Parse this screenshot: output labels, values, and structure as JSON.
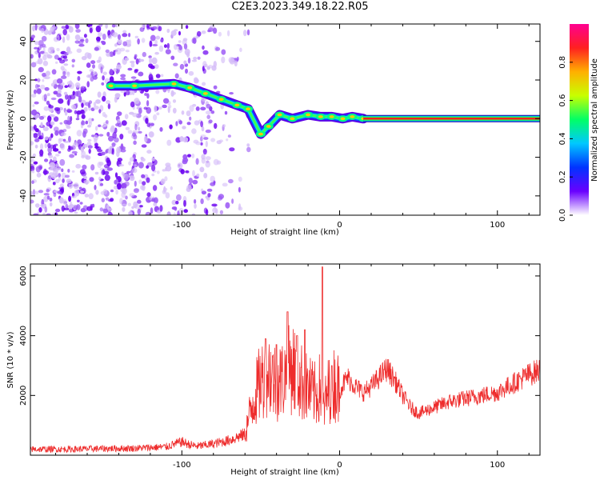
{
  "title": "C2E3.2023.349.18.22.R05",
  "chart_data": [
    {
      "type": "heatmap",
      "xlabel": "Height of straight line (km)",
      "ylabel": "Frequency (Hz)",
      "xlim": [
        -196,
        127
      ],
      "ylim": [
        -50,
        49
      ],
      "xticks": [
        -100,
        0,
        100
      ],
      "yticks": [
        -40,
        -20,
        0,
        20,
        40
      ],
      "colorbar": {
        "label": "Normalized spectral amplitude",
        "range": [
          0,
          1
        ],
        "ticks": [
          "0.0",
          "0.2",
          "0.4",
          "0.6",
          "0.8"
        ],
        "colors": [
          "#ffffff",
          "#6a00ff",
          "#0033ff",
          "#00c8ff",
          "#00ff66",
          "#c8ff00",
          "#ffb000",
          "#ff2020",
          "#ff0090"
        ]
      },
      "ridge": {
        "x": [
          -145,
          -130,
          -105,
          -95,
          -85,
          -75,
          -65,
          -58,
          -50,
          -45,
          -38,
          -30,
          -20,
          -12,
          -5,
          2,
          8,
          15
        ],
        "y": [
          17,
          17,
          18,
          16,
          13,
          10,
          7,
          5,
          -8,
          -4,
          2,
          0,
          2,
          1,
          1,
          0,
          1,
          0
        ],
        "constant_line": {
          "x": [
            15,
            127
          ],
          "y": 0
        }
      },
      "noise_region_x": [
        -196,
        -60
      ]
    },
    {
      "type": "line",
      "xlabel": "Height of straight line (km)",
      "ylabel": "SNR (10 * v/v)",
      "xlim": [
        -196,
        127
      ],
      "ylim": [
        0,
        6400
      ],
      "xticks": [
        -100,
        0,
        100
      ],
      "yticks": [
        2000,
        4000,
        6000
      ],
      "color": "#ee2c2c",
      "series": [
        {
          "x": [
            -196,
            -170,
            -150,
            -130,
            -110,
            -100,
            -95,
            -90,
            -80,
            -70,
            -60,
            -55,
            -50,
            -45,
            -40,
            -35,
            -30,
            -25,
            -20,
            -15,
            -12,
            -10,
            -8,
            -5,
            0,
            5,
            10,
            15,
            20,
            25,
            30,
            35,
            40,
            45,
            50,
            60,
            70,
            80,
            90,
            100,
            110,
            120,
            127
          ],
          "y": [
            200,
            200,
            220,
            230,
            280,
            450,
            350,
            300,
            380,
            500,
            700,
            1800,
            2500,
            2800,
            2400,
            2600,
            3000,
            2500,
            2200,
            2000,
            2300,
            1500,
            2000,
            2500,
            2200,
            2600,
            2300,
            2100,
            2300,
            2600,
            2900,
            2500,
            2000,
            1600,
            1400,
            1600,
            1800,
            1900,
            2000,
            2100,
            2400,
            2700,
            2850
          ]
        }
      ],
      "peaks": [
        {
          "x": -47,
          "y": 3900
        },
        {
          "x": -40,
          "y": 3700
        },
        {
          "x": -33,
          "y": 4800
        },
        {
          "x": -27,
          "y": 4000
        },
        {
          "x": -22,
          "y": 4200
        },
        {
          "x": -11,
          "y": 6300
        },
        {
          "x": -5,
          "y": 3000
        }
      ]
    }
  ]
}
